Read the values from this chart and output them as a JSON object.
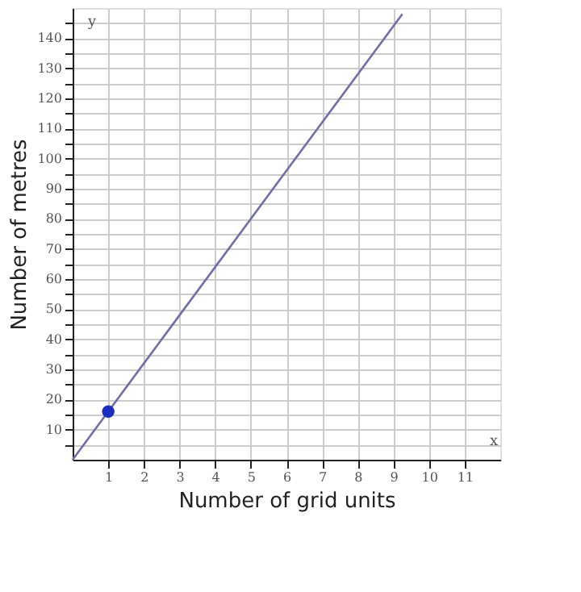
{
  "chart_data": {
    "type": "line",
    "xlabel": "Number of grid units",
    "ylabel": "Number of metres",
    "series": [
      {
        "color": "#6f6fa8",
        "x": [
          0,
          9.25
        ],
        "values": [
          0,
          148
        ]
      },
      {
        "type": "scatter",
        "color": "#1a2fc0",
        "x": [
          1
        ],
        "values": [
          16
        ],
        "marker": "circle"
      }
    ],
    "xlim": [
      0,
      12
    ],
    "ylim": [
      0,
      150
    ],
    "xticks": [
      1,
      2,
      3,
      4,
      5,
      6,
      7,
      8,
      9,
      10,
      11
    ],
    "yticks": [
      {
        "value": 5,
        "label": null
      },
      10,
      {
        "value": 15,
        "label": null
      },
      20,
      {
        "value": 25,
        "label": null
      },
      30,
      {
        "value": 35,
        "label": null
      },
      40,
      {
        "value": 45,
        "label": null
      },
      50,
      {
        "value": 55,
        "label": null
      },
      60,
      {
        "value": 65,
        "label": null
      },
      70,
      {
        "value": 75,
        "label": null
      },
      80,
      {
        "value": 85,
        "label": null
      },
      90,
      {
        "value": 95,
        "label": null
      },
      100,
      {
        "value": 105,
        "label": null
      },
      110,
      {
        "value": 115,
        "label": null
      },
      120,
      {
        "value": 125,
        "label": null
      },
      130,
      {
        "value": 135,
        "label": null
      },
      140,
      {
        "value": 145,
        "label": null
      }
    ],
    "grid": true,
    "annotations": [
      "x",
      "y"
    ]
  }
}
